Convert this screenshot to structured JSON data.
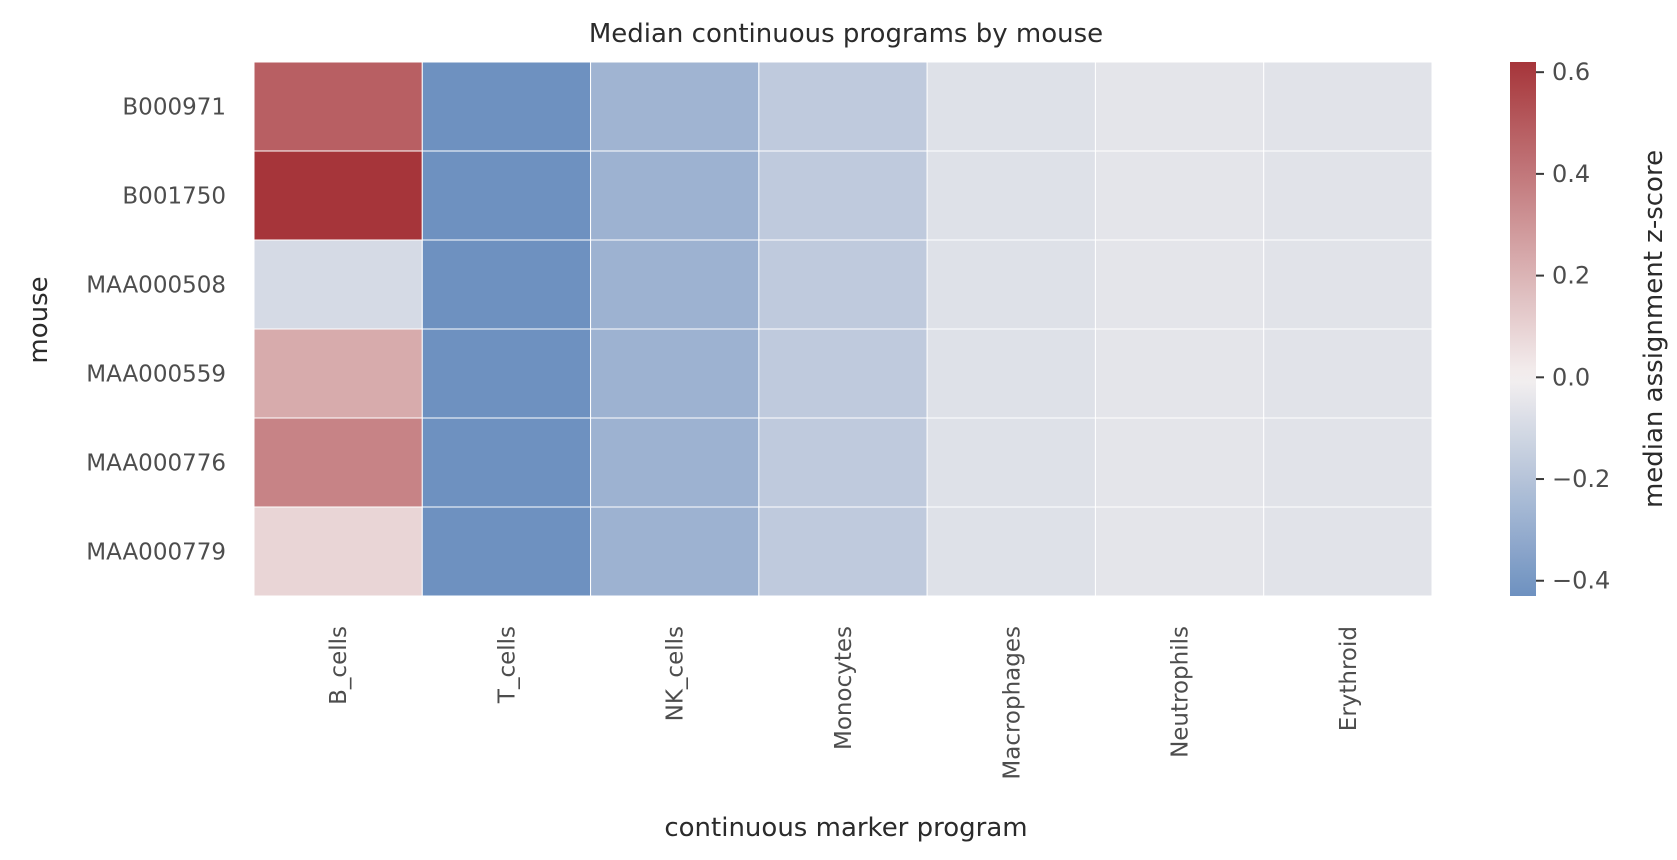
{
  "chart_data": {
    "type": "heatmap",
    "title": "Median continuous programs by mouse",
    "xlabel": "continuous marker program",
    "ylabel": "mouse",
    "x_categories": [
      "B_cells",
      "T_cells",
      "NK_cells",
      "Monocytes",
      "Macrophages",
      "Neutrophils",
      "Erythroid"
    ],
    "y_categories": [
      "B000971",
      "B001750",
      "MAA000508",
      "MAA000559",
      "MAA000776",
      "MAA000779"
    ],
    "values": [
      [
        0.48,
        -0.43,
        -0.27,
        -0.17,
        -0.07,
        -0.05,
        -0.06
      ],
      [
        0.62,
        -0.43,
        -0.28,
        -0.17,
        -0.07,
        -0.05,
        -0.06
      ],
      [
        -0.1,
        -0.43,
        -0.28,
        -0.17,
        -0.07,
        -0.05,
        -0.06
      ],
      [
        0.23,
        -0.43,
        -0.28,
        -0.17,
        -0.07,
        -0.05,
        -0.06
      ],
      [
        0.36,
        -0.43,
        -0.28,
        -0.17,
        -0.07,
        -0.05,
        -0.06
      ],
      [
        0.09,
        -0.43,
        -0.28,
        -0.17,
        -0.07,
        -0.05,
        -0.06
      ]
    ],
    "colorbar": {
      "label": "median assignment z-score",
      "range": [
        -0.43,
        0.62
      ],
      "ticks": [
        0.6,
        0.4,
        0.2,
        0.0,
        -0.2,
        -0.4
      ],
      "tick_labels": [
        "0.6",
        "0.4",
        "0.2",
        "0.0",
        "−0.2",
        "−0.4"
      ],
      "colormap": "vlag",
      "low_color": "#6e91c0",
      "mid_color": "#f4f0f0",
      "high_color": "#a6353a"
    },
    "grid": false
  }
}
